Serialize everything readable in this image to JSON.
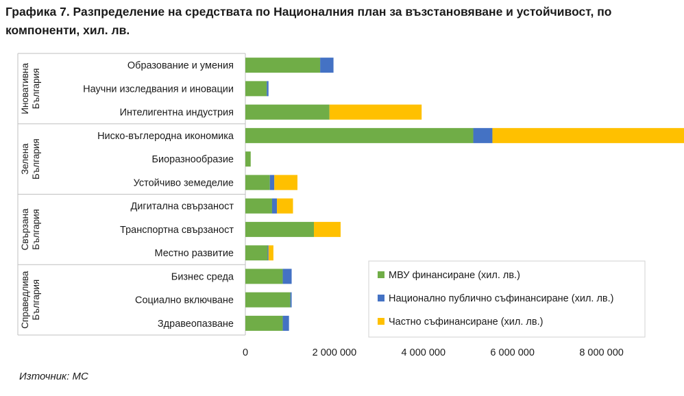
{
  "title": "Графика 7. Разпределение на средствата по Националния план за възстановяване и устойчивост, по компоненти, хил. лв.",
  "source": "Източник: МС",
  "chart_data": {
    "type": "bar",
    "orientation": "horizontal",
    "stacked": true,
    "groups": [
      {
        "name": "Иновативна България",
        "categories": [
          "Образование и умения",
          "Научни изследвания и иновации",
          "Интелигентна индустрия"
        ]
      },
      {
        "name": "Зелена България",
        "categories": [
          "Ниско-въглеродна икономика",
          "Биоразнообразие",
          "Устойчиво земеделие"
        ]
      },
      {
        "name": "Свързана България",
        "categories": [
          "Дигитална свързаност",
          "Транспортна свързаност",
          "Местно развитие"
        ]
      },
      {
        "name": "Справедлива България",
        "categories": [
          "Бизнес среда",
          "Социално включване",
          "Здравеопазване"
        ]
      }
    ],
    "categories": [
      "Образование и умения",
      "Научни изследвания и иновации",
      "Интелигентна индустрия",
      "Ниско-въглеродна икономика",
      "Биоразнообразие",
      "Устойчиво земеделие",
      "Дигитална свързаност",
      "Транспортна свързаност",
      "Местно развитие",
      "Бизнес среда",
      "Социално включване",
      "Здравеопазване"
    ],
    "series": [
      {
        "name": "МВУ финансиране (хил. лв.)",
        "color": "#70ad47",
        "values": [
          1680000,
          480000,
          1890000,
          5120000,
          120000,
          550000,
          600000,
          1540000,
          500000,
          840000,
          1010000,
          840000
        ]
      },
      {
        "name": "Национално публично съфинансиране (хил. лв.)",
        "color": "#4472c4",
        "values": [
          300000,
          40000,
          0,
          430000,
          0,
          100000,
          110000,
          0,
          20000,
          200000,
          30000,
          140000
        ]
      },
      {
        "name": "Частно съфинансиране (хил. лв.)",
        "color": "#ffc000",
        "values": [
          0,
          0,
          2070000,
          4340000,
          0,
          520000,
          360000,
          600000,
          110000,
          0,
          0,
          0
        ]
      }
    ],
    "xlim": [
      0,
      9500000
    ],
    "xticks": [
      0,
      2000000,
      4000000,
      6000000,
      8000000
    ],
    "xtick_labels": [
      "0",
      "2 000 000",
      "4 000 000",
      "6 000 000",
      "8 000 000"
    ],
    "xlabel": "",
    "ylabel": "",
    "grid": false,
    "legend_position": "bottom-right"
  }
}
